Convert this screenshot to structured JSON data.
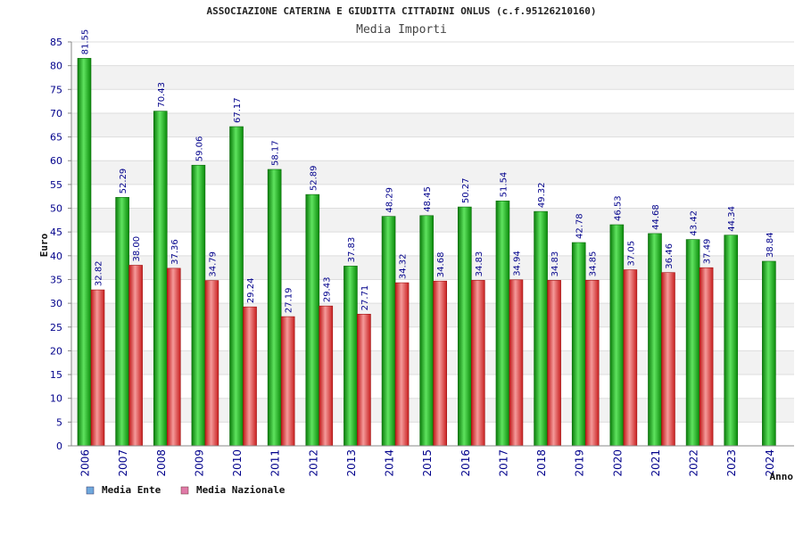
{
  "chart_data": {
    "type": "bar",
    "title": "ASSOCIAZIONE CATERINA E GIUDITTA CITTADINI ONLUS (c.f.95126210160)",
    "subtitle": "Media Importi",
    "xlabel": "Anno",
    "ylabel": "Euro",
    "ylim": [
      0,
      85
    ],
    "ytick_step": 5,
    "grid": true,
    "legend_position": "bottom-left",
    "categories": [
      "2006",
      "2007",
      "2008",
      "2009",
      "2010",
      "2011",
      "2012",
      "2013",
      "2014",
      "2015",
      "2016",
      "2017",
      "2018",
      "2019",
      "2020",
      "2021",
      "2022",
      "2023",
      "2024"
    ],
    "series": [
      {
        "name": "Media Ente",
        "legend_color": "#6fa8dc",
        "bar_color": "#11aa11",
        "values": [
          81.55,
          52.29,
          70.43,
          59.06,
          67.17,
          58.17,
          52.89,
          37.83,
          48.29,
          48.45,
          50.27,
          51.54,
          49.32,
          42.78,
          46.53,
          44.68,
          43.42,
          44.34,
          38.84
        ],
        "labels": [
          "81.55",
          "52.29",
          "70.43",
          "59.06",
          "67.17",
          "58.17",
          "52.89",
          "37.83",
          "48.29",
          "48.45",
          "50.27",
          "51.54",
          "49.32",
          "42.78",
          "46.53",
          "44.68",
          "43.42",
          "44.34",
          "38.84"
        ]
      },
      {
        "name": "Media Nazionale",
        "legend_color": "#e07aa8",
        "bar_color": "#dd2222",
        "values": [
          32.82,
          38.0,
          37.36,
          34.79,
          29.24,
          27.19,
          29.43,
          27.71,
          34.32,
          34.68,
          34.83,
          34.94,
          34.83,
          34.85,
          37.05,
          36.46,
          37.49,
          null,
          null
        ],
        "labels": [
          "32.82",
          "38.00",
          "37.36",
          "34.79",
          "29.24",
          "27.19",
          "29.43",
          "27.71",
          "34.32",
          "34.68",
          "34.83",
          "34.94",
          "34.83",
          "34.85",
          "37.05",
          "36.46",
          "37.49",
          null,
          null
        ]
      }
    ]
  }
}
